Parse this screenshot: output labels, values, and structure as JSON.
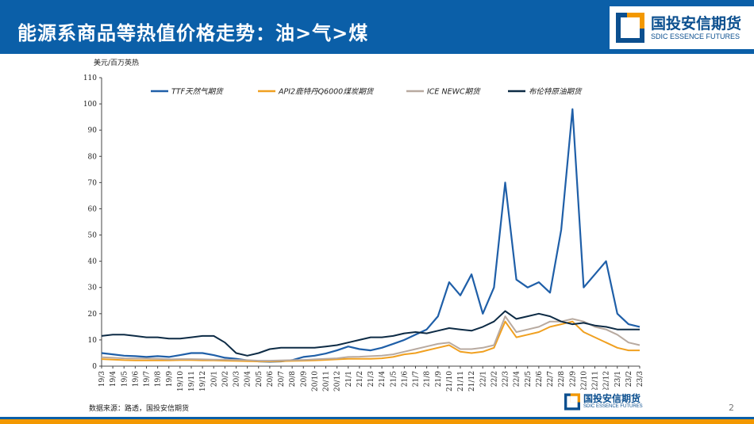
{
  "header": {
    "title": "能源系商品等热值价格走势：油>气>煤"
  },
  "logo": {
    "cn": "国投安信期货",
    "en": "SDIC ESSENCE FUTURES"
  },
  "footer": {
    "source": "数据来源：路透，国投安信期货",
    "page": "2",
    "logo_cn": "国投安信期货",
    "logo_en": "SDIC ESSENCE FUTURES"
  },
  "colors": {
    "header": "#0b5fa8",
    "accent": "#f39800",
    "ttf": "#1f5fa8",
    "api2": "#f0a020",
    "newc": "#b8aaa0",
    "brent": "#0d2b45"
  },
  "chart_data": {
    "type": "line",
    "ylabel": "美元/百万英热",
    "ylim": [
      0,
      110
    ],
    "yticks": [
      0,
      10,
      20,
      30,
      40,
      50,
      60,
      70,
      80,
      90,
      100,
      110
    ],
    "xticks": [
      "19/3",
      "19/4",
      "19/5",
      "19/6",
      "19/7",
      "19/8",
      "19/9",
      "19/10",
      "19/11",
      "19/12",
      "20/1",
      "20/2",
      "20/3",
      "20/4",
      "20/5",
      "20/6",
      "20/7",
      "20/8",
      "20/9",
      "20/10",
      "20/11",
      "20/12",
      "21/1",
      "21/2",
      "21/3",
      "21/4",
      "21/5",
      "21/6",
      "21/7",
      "21/8",
      "21/9",
      "21/10",
      "21/11",
      "21/12",
      "22/1",
      "22/2",
      "22/3",
      "22/4",
      "22/5",
      "22/6",
      "22/7",
      "22/8",
      "22/9",
      "22/10",
      "22/11",
      "22/12",
      "23/1",
      "23/2",
      "23/3"
    ],
    "legend_position": "top",
    "series": [
      {
        "name": "TTF天然气期货",
        "color": "#1f5fa8",
        "values": [
          5,
          4.5,
          4,
          3.8,
          3.5,
          3.8,
          3.5,
          4.2,
          5,
          5,
          4.2,
          3.2,
          2.8,
          2.2,
          1.8,
          1.7,
          1.8,
          2.3,
          3.5,
          4,
          4.8,
          6,
          7.5,
          6.5,
          6,
          7,
          8.5,
          10,
          12,
          14,
          19,
          32,
          27,
          35,
          20,
          30,
          70,
          33,
          30,
          32,
          28,
          52,
          98,
          30,
          35,
          40,
          20,
          16,
          15
        ]
      },
      {
        "name": "API2鹿特丹Q6000煤炭期货",
        "color": "#f0a020",
        "values": [
          2.7,
          2.5,
          2.3,
          2.2,
          2.2,
          2.2,
          2.2,
          2.3,
          2.3,
          2.2,
          2.2,
          2.1,
          2,
          1.9,
          1.8,
          1.8,
          1.9,
          2,
          2.1,
          2.2,
          2.4,
          2.6,
          2.8,
          2.8,
          2.8,
          3,
          3.5,
          4.5,
          5,
          6,
          7,
          8,
          5.5,
          5,
          5.5,
          7,
          17,
          11,
          12,
          13,
          15,
          16,
          17,
          13,
          11,
          9,
          7,
          6,
          6
        ]
      },
      {
        "name": "ICE NEWC期货",
        "color": "#b8aaa0",
        "values": [
          3.4,
          3.2,
          3,
          2.9,
          2.9,
          2.8,
          2.6,
          2.7,
          2.7,
          2.6,
          2.5,
          2.5,
          2.4,
          2.3,
          2.1,
          2.1,
          2.2,
          2.3,
          2.4,
          2.6,
          2.8,
          3,
          3.5,
          3.6,
          3.8,
          4,
          4.5,
          5.5,
          6.5,
          7.5,
          8.5,
          9,
          6.5,
          6.5,
          7,
          8,
          19,
          13,
          14,
          15,
          17,
          17,
          18,
          17,
          15,
          14,
          12,
          9,
          8
        ]
      },
      {
        "name": "布伦特原油期货",
        "color": "#0d2b45",
        "values": [
          11.5,
          12,
          12,
          11.5,
          11,
          11,
          10.5,
          10.5,
          11,
          11.5,
          11.5,
          9,
          5,
          4,
          5,
          6.5,
          7,
          7,
          7,
          7,
          7.5,
          8,
          9,
          10,
          11,
          11,
          11.5,
          12.5,
          13,
          12.5,
          13.5,
          14.5,
          14,
          13.5,
          15,
          17,
          21,
          18,
          19,
          20,
          19,
          17,
          16,
          16.5,
          15.5,
          15,
          14,
          14,
          14
        ]
      }
    ]
  }
}
